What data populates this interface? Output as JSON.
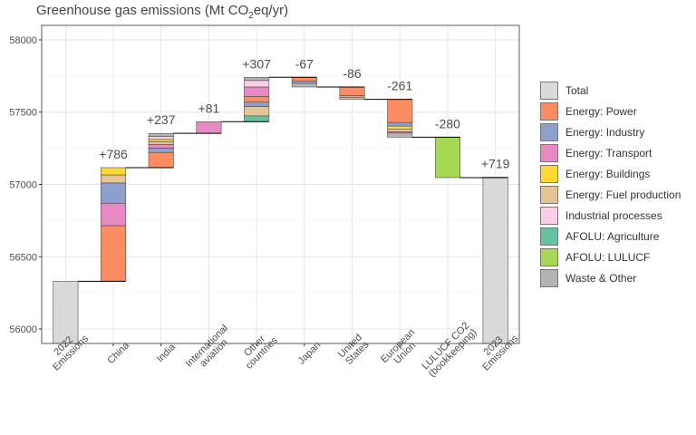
{
  "title": {
    "main": "Greenhouse gas emissions (Mt CO",
    "sub": "2",
    "tail": "eq/yr)"
  },
  "legend": [
    {
      "label": "Total",
      "color": "#d9d9d9"
    },
    {
      "label": "Energy: Power",
      "color": "#fc8d62"
    },
    {
      "label": "Energy: Industry",
      "color": "#8da0cb"
    },
    {
      "label": "Energy: Transport",
      "color": "#e78ac3"
    },
    {
      "label": "Energy: Buildings",
      "color": "#ffd92f"
    },
    {
      "label": "Energy: Fuel production",
      "color": "#e5c494"
    },
    {
      "label": "Industrial processes",
      "color": "#fccde5"
    },
    {
      "label": "AFOLU: Agriculture",
      "color": "#66c2a5"
    },
    {
      "label": "AFOLU: LULUCF",
      "color": "#a6d854"
    },
    {
      "label": "Waste & Other",
      "color": "#b3b3b3"
    }
  ],
  "chart_data": {
    "type": "waterfall",
    "ylim": [
      55900,
      58100
    ],
    "yticks": [
      56000,
      56500,
      57000,
      57500,
      58000
    ],
    "grid": true,
    "legend_position": "right",
    "categories": [
      {
        "label": [
          "2022",
          "Emissions"
        ],
        "kind": "total",
        "value": 56330
      },
      {
        "label": [
          "China"
        ],
        "kind": "delta",
        "change_label": "+786",
        "segments": [
          {
            "sector": "Energy: Power",
            "value": 385
          },
          {
            "sector": "Energy: Transport",
            "value": 155
          },
          {
            "sector": "Energy: Industry",
            "value": 140
          },
          {
            "sector": "Energy: Fuel production",
            "value": 56
          },
          {
            "sector": "Energy: Buildings",
            "value": 50
          }
        ]
      },
      {
        "label": [
          "India"
        ],
        "kind": "delta",
        "change_label": "+237",
        "segments": [
          {
            "sector": "Energy: Power",
            "value": 105
          },
          {
            "sector": "Energy: Industry",
            "value": 30
          },
          {
            "sector": "Energy: Transport",
            "value": 25
          },
          {
            "sector": "Energy: Fuel production",
            "value": 20
          },
          {
            "sector": "Energy: Buildings",
            "value": 15
          },
          {
            "sector": "Industrial processes",
            "value": 20
          },
          {
            "sector": "Waste & Other",
            "value": 22
          }
        ]
      },
      {
        "label": [
          "International",
          "aviation"
        ],
        "kind": "delta",
        "change_label": "+81",
        "segments": [
          {
            "sector": "Energy: Transport",
            "value": 81
          }
        ]
      },
      {
        "label": [
          "Other",
          "countries"
        ],
        "kind": "delta",
        "change_label": "+307",
        "segments": [
          {
            "sector": "AFOLU: Agriculture",
            "value": 40
          },
          {
            "sector": "Energy: Fuel production",
            "value": 65
          },
          {
            "sector": "Energy: Industry",
            "value": 30
          },
          {
            "sector": "Energy: Power",
            "value": 40
          },
          {
            "sector": "Energy: Transport",
            "value": 65
          },
          {
            "sector": "Industrial processes",
            "value": 45
          },
          {
            "sector": "Waste & Other",
            "value": 22
          }
        ]
      },
      {
        "label": [
          "Japan"
        ],
        "kind": "delta",
        "change_label": "-67",
        "segments": [
          {
            "sector": "Energy: Power",
            "value": -25
          },
          {
            "sector": "Energy: Industry",
            "value": -17
          },
          {
            "sector": "Waste & Other",
            "value": -25
          }
        ]
      },
      {
        "label": [
          "United",
          "States"
        ],
        "kind": "delta",
        "change_label": "-86",
        "segments": [
          {
            "sector": "Energy: Power",
            "value": -60
          },
          {
            "sector": "Waste & Other",
            "value": -14
          },
          {
            "sector": "Energy: Fuel production",
            "value": -12
          }
        ]
      },
      {
        "label": [
          "European",
          "Union"
        ],
        "kind": "delta",
        "change_label": "-261",
        "segments": [
          {
            "sector": "Energy: Power",
            "value": -160
          },
          {
            "sector": "Energy: Industry",
            "value": -25
          },
          {
            "sector": "Energy: Buildings",
            "value": -20
          },
          {
            "sector": "Energy: Fuel production",
            "value": -20
          },
          {
            "sector": "Energy: Transport",
            "value": -8
          },
          {
            "sector": "Waste & Other",
            "value": -28
          }
        ]
      },
      {
        "label": [
          "LULUCF CO2",
          "(bookkeeping)"
        ],
        "kind": "delta",
        "change_label": "-280",
        "segments": [
          {
            "sector": "AFOLU: LULUCF",
            "value": -280
          }
        ]
      },
      {
        "label": [
          "2023",
          "Emissions"
        ],
        "kind": "total",
        "value": 57050,
        "change_label": "+719"
      }
    ]
  }
}
